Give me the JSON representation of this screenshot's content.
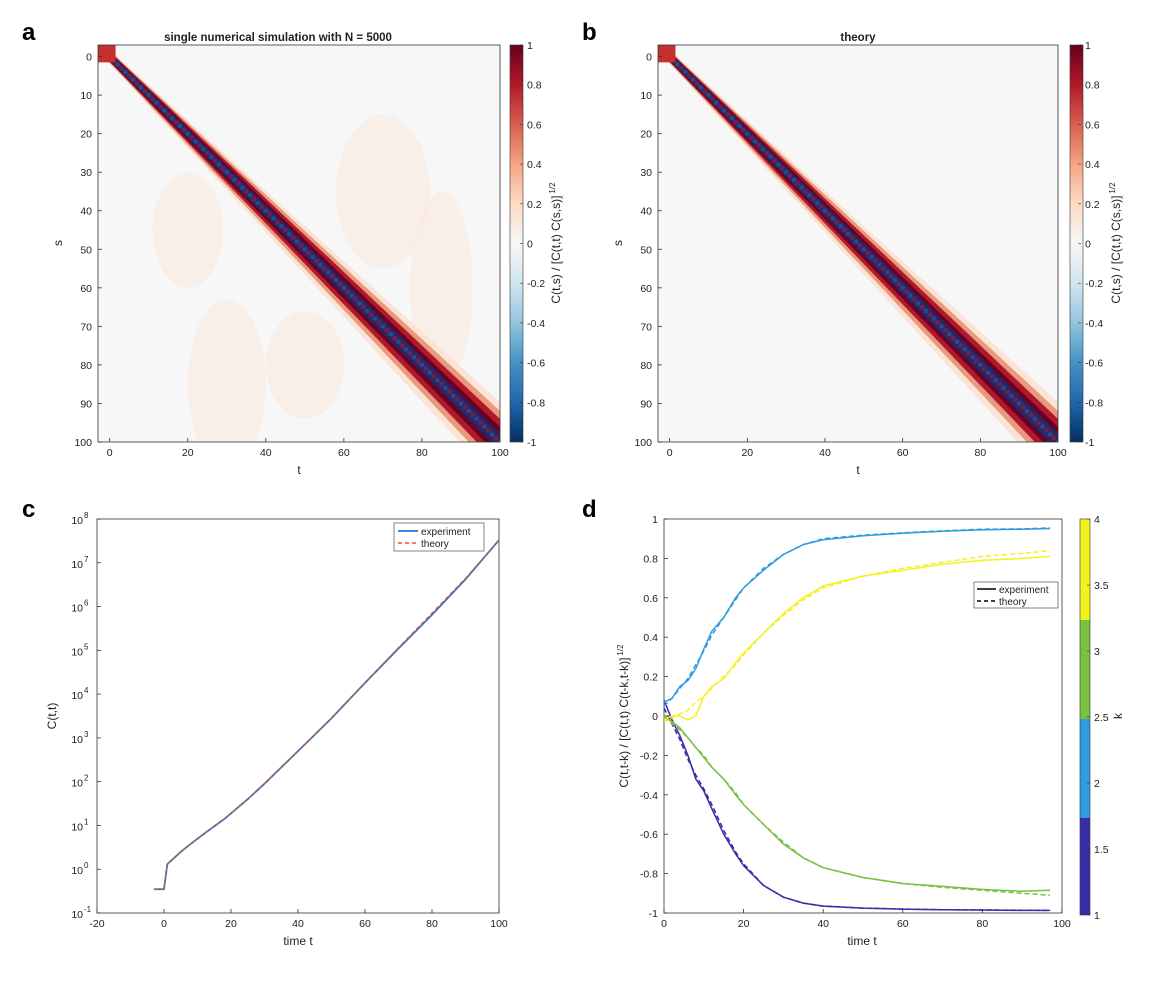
{
  "colors": {
    "experiment": "#1f77d4",
    "theory": "#e8522a",
    "diverging_neg": "#053061",
    "diverging_mid": "#f7f7f7",
    "diverging_pos": "#67001f",
    "k1": "#3a2ca8",
    "k2": "#2f9be0",
    "k3": "#79c043",
    "k4": "#f4f21e"
  },
  "chart_data": [
    {
      "panel": "a",
      "type": "heatmap",
      "title": "single numerical simulation with N = 5000",
      "xlabel": "t",
      "ylabel": "s",
      "xticks": [
        "0",
        "20",
        "40",
        "60",
        "80",
        "100"
      ],
      "yticks": [
        "0",
        "10",
        "20",
        "30",
        "40",
        "50",
        "60",
        "70",
        "80",
        "90",
        "100"
      ],
      "xlim": [
        -3,
        100
      ],
      "ylim": [
        -3,
        100
      ],
      "colorbar_label": "C(t,s) / [C(t,t) C(s,s)]",
      "colorbar_sup": "1/2",
      "colorbar_ticks": [
        "1",
        "0.8",
        "0.6",
        "0.4",
        "0.2",
        "0",
        "-0.2",
        "-0.4",
        "-0.6",
        "-0.8",
        "-1"
      ],
      "clim": [
        -1,
        1
      ],
      "band_halfwidth_start": 0.5,
      "band_halfwidth_end": 5
    },
    {
      "panel": "b",
      "type": "heatmap",
      "title": "theory",
      "xlabel": "t",
      "ylabel": "s",
      "xticks": [
        "0",
        "20",
        "40",
        "60",
        "80",
        "100"
      ],
      "yticks": [
        "0",
        "10",
        "20",
        "30",
        "40",
        "50",
        "60",
        "70",
        "80",
        "90",
        "100"
      ],
      "xlim": [
        -3,
        100
      ],
      "ylim": [
        -3,
        100
      ],
      "colorbar_label": "C(t,s) / [C(t,t) C(s,s)]",
      "colorbar_sup": "1/2",
      "colorbar_ticks": [
        "1",
        "0.8",
        "0.6",
        "0.4",
        "0.2",
        "0",
        "-0.2",
        "-0.4",
        "-0.6",
        "-0.8",
        "-1"
      ],
      "clim": [
        -1,
        1
      ],
      "band_halfwidth_start": 0.5,
      "band_halfwidth_end": 5
    },
    {
      "panel": "c",
      "type": "line",
      "xlabel": "time t",
      "ylabel": "C(t,t)",
      "yscale": "log",
      "xlim": [
        -20,
        100
      ],
      "ylim": [
        0.1,
        100000000
      ],
      "xticks": [
        "-20",
        "0",
        "20",
        "40",
        "60",
        "80",
        "100"
      ],
      "yticks": [
        "10",
        "10",
        "10",
        "10",
        "10",
        "10",
        "10",
        "10",
        "10",
        "10"
      ],
      "ytick_exponents": [
        "-1",
        "0",
        "1",
        "2",
        "3",
        "4",
        "5",
        "6",
        "7",
        "8"
      ],
      "legend": [
        "experiment",
        "theory"
      ],
      "legend_position": "top-right",
      "x": [
        -3,
        0,
        1,
        5,
        8,
        12,
        18,
        25,
        30,
        40,
        50,
        60,
        70,
        80,
        90,
        100
      ],
      "series": [
        {
          "name": "experiment",
          "values": [
            0.35,
            0.35,
            1.3,
            2.5,
            3.8,
            6.5,
            14,
            40,
            90,
            500,
            2800,
            18000,
            110000,
            650000,
            4200000,
            33000000
          ]
        },
        {
          "name": "theory",
          "values": [
            0.35,
            0.35,
            1.3,
            2.5,
            3.8,
            6.5,
            14,
            40,
            90,
            500,
            2800,
            18000,
            115000,
            700000,
            4400000,
            33000000
          ]
        }
      ]
    },
    {
      "panel": "d",
      "type": "line",
      "xlabel": "time t",
      "ylabel": "C(t,t-k) / [C(t,t) C(t-k,t-k)]",
      "ylabel_sup": "1/2",
      "xlim": [
        0,
        100
      ],
      "ylim": [
        -1,
        1
      ],
      "xticks": [
        "0",
        "20",
        "40",
        "60",
        "80",
        "100"
      ],
      "yticks": [
        "1",
        "0.8",
        "0.6",
        "0.4",
        "0.2",
        "0",
        "-0.2",
        "-0.4",
        "-0.6",
        "-0.8",
        "-1"
      ],
      "legend": [
        "experiment",
        "theory"
      ],
      "legend_position": "top-right",
      "colorbar_label": "k",
      "colorbar_ticks": [
        "4",
        "3.5",
        "3",
        "2.5",
        "2",
        "1.5",
        "1"
      ],
      "x": [
        0,
        2,
        4,
        6,
        8,
        10,
        12,
        15,
        18,
        20,
        25,
        30,
        35,
        40,
        50,
        60,
        70,
        80,
        90,
        97
      ],
      "series": [
        {
          "name": "k=1 experiment",
          "k": 1,
          "style": "solid",
          "values": [
            0.08,
            -0.02,
            -0.1,
            -0.2,
            -0.32,
            -0.38,
            -0.47,
            -0.6,
            -0.7,
            -0.76,
            -0.86,
            -0.92,
            -0.95,
            -0.965,
            -0.975,
            -0.98,
            -0.983,
            -0.985,
            -0.987,
            -0.987
          ]
        },
        {
          "name": "k=1 theory",
          "k": 1,
          "style": "dashed",
          "values": [
            0.04,
            -0.04,
            -0.12,
            -0.22,
            -0.3,
            -0.37,
            -0.45,
            -0.58,
            -0.69,
            -0.75,
            -0.86,
            -0.92,
            -0.95,
            -0.965,
            -0.975,
            -0.98,
            -0.983,
            -0.985,
            -0.986,
            -0.987
          ]
        },
        {
          "name": "k=2 experiment",
          "k": 2,
          "style": "solid",
          "values": [
            0.07,
            0.09,
            0.15,
            0.18,
            0.24,
            0.34,
            0.43,
            0.5,
            0.6,
            0.65,
            0.74,
            0.82,
            0.87,
            0.895,
            0.915,
            0.928,
            0.938,
            0.945,
            0.948,
            0.952
          ]
        },
        {
          "name": "k=2 theory",
          "k": 2,
          "style": "dashed",
          "values": [
            0.05,
            0.09,
            0.14,
            0.19,
            0.26,
            0.33,
            0.41,
            0.5,
            0.59,
            0.65,
            0.75,
            0.82,
            0.87,
            0.9,
            0.918,
            0.93,
            0.94,
            0.948,
            0.95,
            0.955
          ]
        },
        {
          "name": "k=3 experiment",
          "k": 3,
          "style": "solid",
          "values": [
            0.0,
            -0.03,
            -0.06,
            -0.11,
            -0.16,
            -0.21,
            -0.26,
            -0.32,
            -0.4,
            -0.45,
            -0.55,
            -0.65,
            -0.72,
            -0.77,
            -0.82,
            -0.85,
            -0.865,
            -0.88,
            -0.89,
            -0.885
          ]
        },
        {
          "name": "k=3 theory",
          "k": 3,
          "style": "dashed",
          "values": [
            -0.01,
            -0.04,
            -0.07,
            -0.11,
            -0.16,
            -0.2,
            -0.26,
            -0.32,
            -0.39,
            -0.45,
            -0.55,
            -0.64,
            -0.72,
            -0.77,
            -0.82,
            -0.85,
            -0.87,
            -0.885,
            -0.9,
            -0.91
          ]
        },
        {
          "name": "k=4 experiment",
          "k": 4,
          "style": "solid",
          "values": [
            -0.02,
            0.0,
            0.0,
            -0.02,
            0.0,
            0.1,
            0.15,
            0.19,
            0.27,
            0.32,
            0.42,
            0.52,
            0.6,
            0.66,
            0.71,
            0.74,
            0.77,
            0.79,
            0.8,
            0.81
          ]
        },
        {
          "name": "k=4 theory",
          "k": 4,
          "style": "dashed",
          "values": [
            -0.03,
            -0.01,
            0.01,
            0.03,
            0.07,
            0.1,
            0.14,
            0.2,
            0.26,
            0.31,
            0.42,
            0.51,
            0.59,
            0.65,
            0.71,
            0.75,
            0.78,
            0.81,
            0.825,
            0.84
          ]
        }
      ]
    }
  ],
  "panels": {
    "a": "a",
    "b": "b",
    "c": "c",
    "d": "d"
  }
}
